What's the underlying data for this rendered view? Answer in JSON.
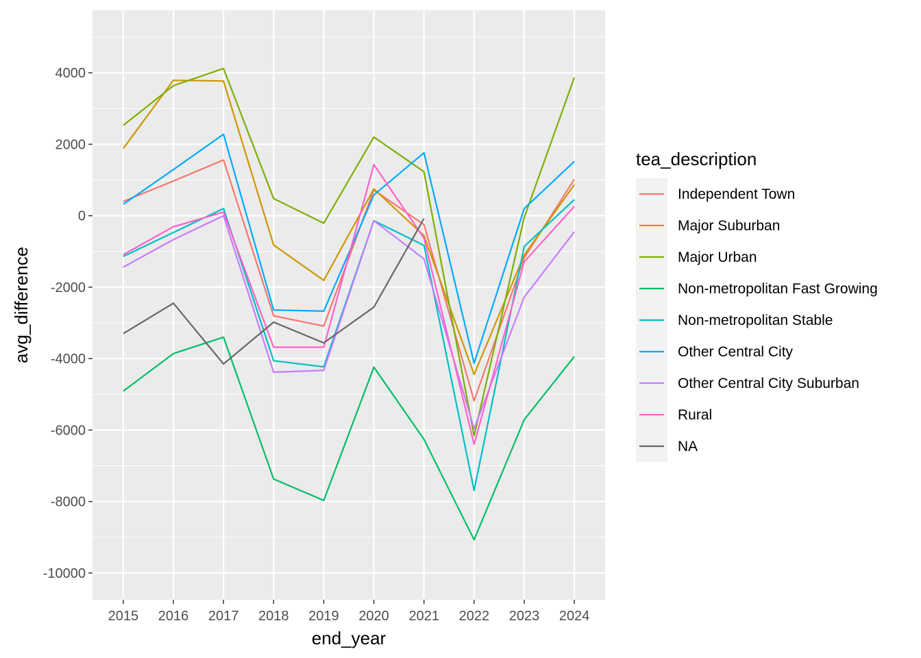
{
  "chart_data": {
    "type": "line",
    "xlabel": "end_year",
    "ylabel": "avg_difference",
    "x": [
      2015,
      2016,
      2017,
      2018,
      2019,
      2020,
      2021,
      2022,
      2023,
      2024
    ],
    "xticks": [
      "2015",
      "2016",
      "2017",
      "2018",
      "2019",
      "2020",
      "2021",
      "2022",
      "2023",
      "2024"
    ],
    "yticks": [
      4000,
      2000,
      0,
      -2000,
      -4000,
      -6000,
      -8000,
      -10000
    ],
    "ytick_labels": [
      "4000",
      "2000",
      "0",
      "-2000",
      "-4000",
      "-6000",
      "-8000",
      "-10000"
    ],
    "ylim": [
      -10750,
      5750
    ],
    "grid": true,
    "legend_title": "tea_description",
    "legend_position": "right",
    "series": [
      {
        "name": "Independent Town",
        "color": "#F8766D",
        "values": [
          400,
          970,
          1560,
          -2800,
          -3090,
          720,
          -250,
          -5180,
          -1180,
          1020
        ]
      },
      {
        "name": "Major Suburban",
        "color": "#CD9600",
        "values": [
          1880,
          3790,
          3770,
          -820,
          -1810,
          750,
          -560,
          -4440,
          -1100,
          870
        ]
      },
      {
        "name": "Major Urban",
        "color": "#7CAE00",
        "values": [
          2530,
          3640,
          4120,
          480,
          -210,
          2200,
          1230,
          -6160,
          -50,
          3870
        ]
      },
      {
        "name": "Non-metropolitan Fast Growing",
        "color": "#00BE67",
        "values": [
          -4910,
          -3860,
          -3400,
          -7370,
          -7970,
          -4240,
          -6260,
          -9070,
          -5710,
          -3940
        ]
      },
      {
        "name": "Non-metropolitan Stable",
        "color": "#00BFC4",
        "values": [
          -1140,
          -470,
          200,
          -4060,
          -4230,
          -140,
          -830,
          -7690,
          -860,
          450
        ]
      },
      {
        "name": "Other Central City",
        "color": "#00A9FF",
        "values": [
          320,
          1290,
          2280,
          -2640,
          -2670,
          580,
          1760,
          -4130,
          200,
          1520
        ]
      },
      {
        "name": "Other Central City Suburban",
        "color": "#C77CFF",
        "values": [
          -1440,
          -670,
          0,
          -4380,
          -4330,
          -140,
          -1210,
          -5960,
          -2280,
          -450
        ]
      },
      {
        "name": "Rural",
        "color": "#FF61CC",
        "values": [
          -1090,
          -310,
          100,
          -3680,
          -3680,
          1430,
          -630,
          -6400,
          -1290,
          260
        ]
      },
      {
        "name": "NA",
        "color": "#666666",
        "values": [
          -3300,
          -2450,
          -4150,
          -2980,
          -3560,
          -2560,
          -80,
          null,
          null,
          null
        ]
      }
    ]
  }
}
